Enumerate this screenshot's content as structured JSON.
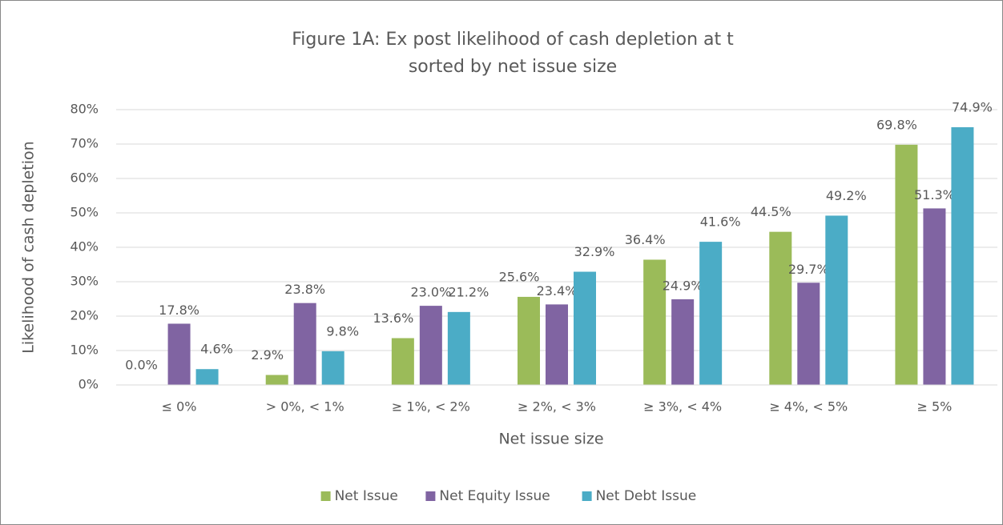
{
  "chart_data": {
    "type": "bar",
    "title": "Figure 1A: Ex post likelihood of cash depletion at t",
    "subtitle": "sorted by net issue size",
    "x_label": "Net issue size",
    "y_label": "Likelihood of cash depletion",
    "categories": [
      "≤ 0%",
      "> 0%, < 1%",
      "≥ 1%, < 2%",
      "≥ 2%, < 3%",
      "≥ 3%, < 4%",
      "≥ 4%, < 5%",
      "≥ 5%"
    ],
    "series": [
      {
        "name": "Net Issue",
        "color": "#9bbb59",
        "values": [
          0.0,
          2.9,
          13.6,
          25.6,
          36.4,
          44.5,
          69.8
        ],
        "value_labels": [
          "0.0%",
          "2.9%",
          "13.6%",
          "25.6%",
          "36.4%",
          "44.5%",
          "69.8%"
        ]
      },
      {
        "name": "Net Equity Issue",
        "color": "#8064a2",
        "values": [
          17.8,
          23.8,
          23.0,
          23.4,
          24.9,
          29.7,
          51.3
        ],
        "value_labels": [
          "17.8%",
          "23.8%",
          "23.0%",
          "23.4%",
          "24.9%",
          "29.7%",
          "51.3%"
        ]
      },
      {
        "name": "Net Debt Issue",
        "color": "#4bacc6",
        "values": [
          4.6,
          9.8,
          21.2,
          32.9,
          41.6,
          49.2,
          74.9
        ],
        "value_labels": [
          "4.6%",
          "9.8%",
          "21.2%",
          "32.9%",
          "41.6%",
          "49.2%",
          "74.9%"
        ]
      }
    ],
    "ylim": [
      0,
      80
    ],
    "yticks": [
      {
        "value": 0,
        "label": "0%"
      },
      {
        "value": 10,
        "label": "10%"
      },
      {
        "value": 20,
        "label": "20%"
      },
      {
        "value": 30,
        "label": "30%"
      },
      {
        "value": 40,
        "label": "40%"
      },
      {
        "value": 50,
        "label": "50%"
      },
      {
        "value": 60,
        "label": "60%"
      },
      {
        "value": 70,
        "label": "70%"
      },
      {
        "value": 80,
        "label": "80%"
      }
    ],
    "grid": true,
    "legend": "bottom"
  }
}
